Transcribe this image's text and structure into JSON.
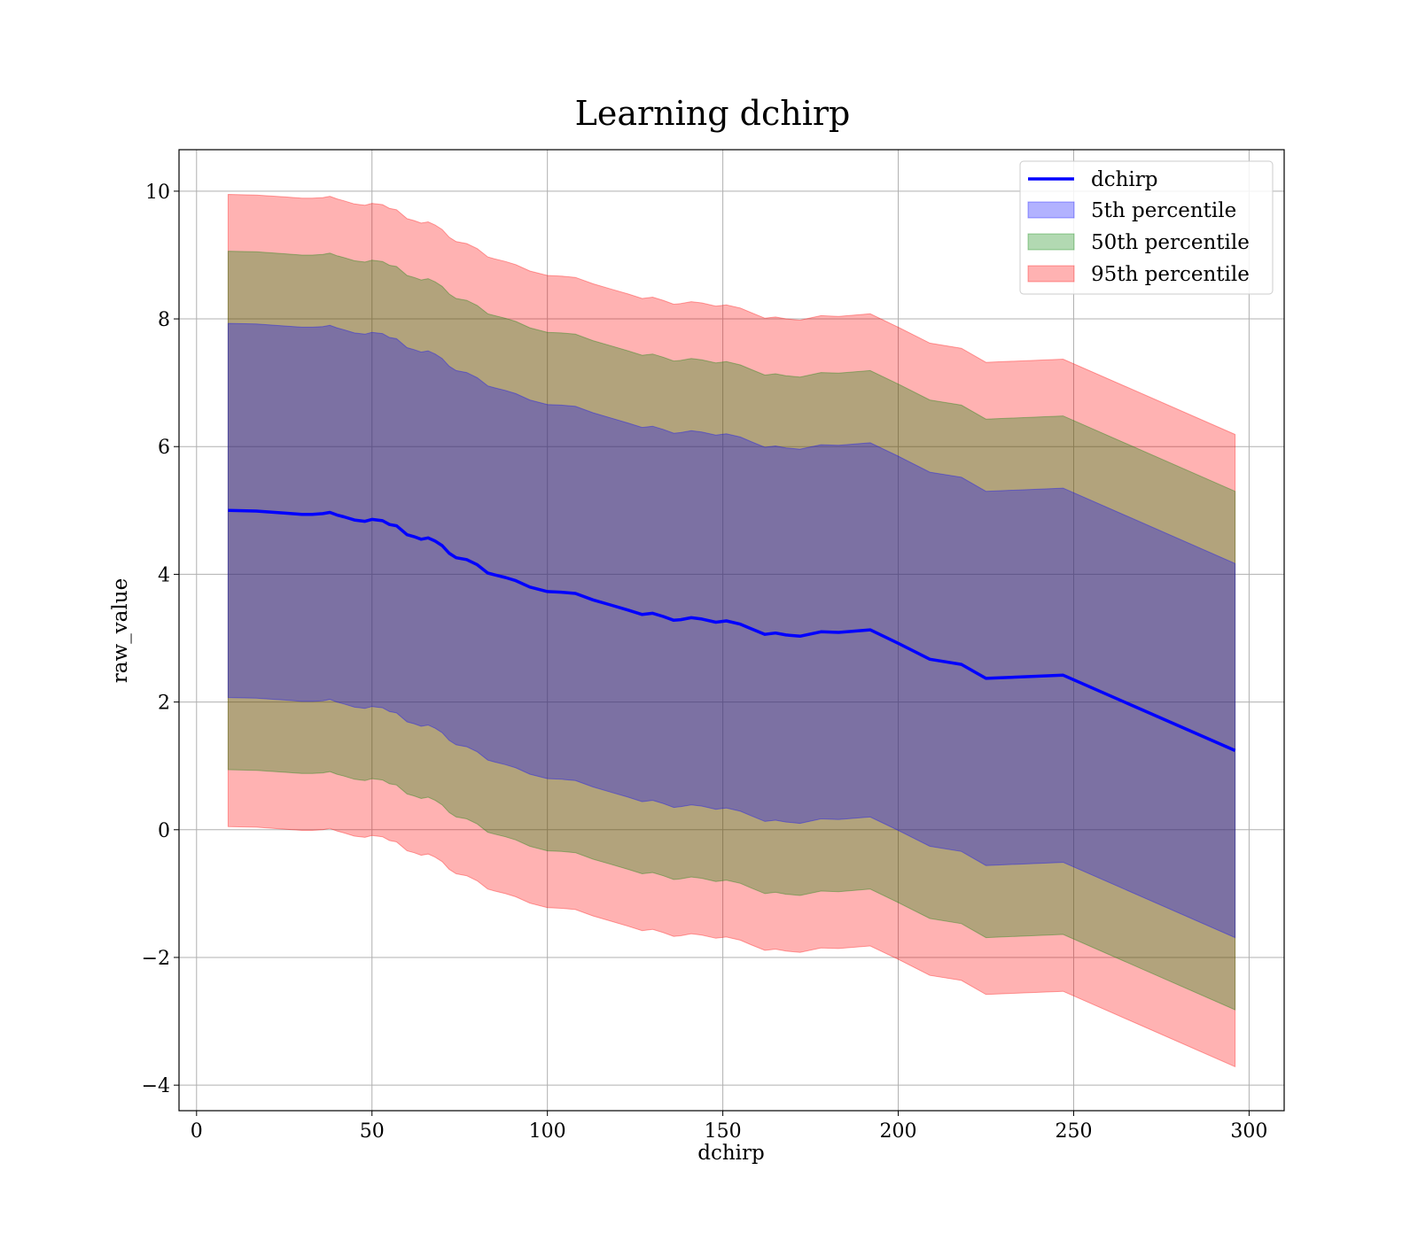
{
  "chart_data": {
    "type": "area",
    "title": "Learning dchirp",
    "xlabel": "dchirp",
    "ylabel": "raw_value",
    "xlim": [
      -5,
      310
    ],
    "ylim": [
      -4.4,
      10.65
    ],
    "xticks": [
      0,
      50,
      100,
      150,
      200,
      250,
      300
    ],
    "yticks": [
      -4,
      -2,
      0,
      2,
      4,
      6,
      8,
      10
    ],
    "xtick_labels": [
      "0",
      "50",
      "100",
      "150",
      "200",
      "250",
      "300"
    ],
    "ytick_labels": [
      "−4",
      "−2",
      "0",
      "2",
      "4",
      "6",
      "8",
      "10"
    ],
    "grid": true,
    "legend_position": "top-right",
    "x": [
      9,
      17,
      25,
      30,
      33,
      36,
      38,
      40,
      42,
      45,
      48,
      50,
      53,
      55,
      57,
      60,
      62,
      64,
      66,
      68,
      70,
      72,
      74,
      77,
      80,
      83,
      85,
      88,
      91,
      95,
      100,
      104,
      108,
      113,
      118,
      123,
      127,
      130,
      133,
      136,
      138,
      141,
      144,
      148,
      151,
      155,
      158,
      162,
      165,
      168,
      172,
      178,
      183,
      192,
      200,
      209,
      218,
      225,
      247,
      296
    ],
    "series": [
      {
        "name": "dchirp",
        "type": "line",
        "color": "#0000ff",
        "values": [
          5.0,
          4.99,
          4.96,
          4.94,
          4.94,
          4.95,
          4.97,
          4.93,
          4.9,
          4.85,
          4.83,
          4.86,
          4.84,
          4.78,
          4.76,
          4.62,
          4.59,
          4.55,
          4.57,
          4.52,
          4.45,
          4.33,
          4.26,
          4.23,
          4.15,
          4.02,
          3.99,
          3.95,
          3.9,
          3.8,
          3.73,
          3.72,
          3.7,
          3.6,
          3.52,
          3.44,
          3.37,
          3.39,
          3.34,
          3.28,
          3.29,
          3.32,
          3.3,
          3.25,
          3.27,
          3.22,
          3.15,
          3.06,
          3.08,
          3.05,
          3.03,
          3.1,
          3.09,
          3.13,
          2.92,
          2.67,
          2.59,
          2.37,
          2.42,
          1.24
        ]
      },
      {
        "name": "5th percentile",
        "type": "band",
        "color": "#0000ff",
        "upper_offset": 2.93,
        "lower_offset": -2.93
      },
      {
        "name": "50th percentile",
        "type": "band",
        "color": "#008000",
        "upper_offset": 4.06,
        "lower_offset": -4.06
      },
      {
        "name": "95th percentile",
        "type": "band",
        "color": "#ff0000",
        "upper_offset": 4.95,
        "lower_offset": -4.95
      }
    ]
  }
}
